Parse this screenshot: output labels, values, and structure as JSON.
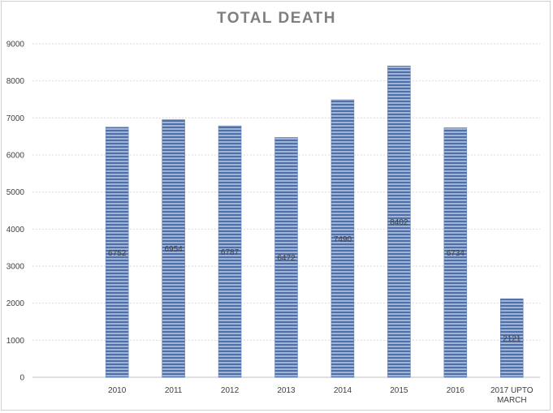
{
  "chart_data": {
    "type": "bar",
    "title": "TOTAL DEATH",
    "xlabel": "",
    "ylabel": "",
    "categories": [
      "",
      "2010",
      "2011",
      "2012",
      "2013",
      "2014",
      "2015",
      "2016",
      "2017 UPTO MARCH"
    ],
    "values": [
      null,
      6752,
      6954,
      6787,
      6472,
      7490,
      8402,
      6734,
      2121
    ],
    "data_labels": [
      "",
      "6752",
      "6954",
      "6787",
      "6472",
      "7490",
      "8402",
      "6734",
      "2121"
    ],
    "ylim": [
      0,
      9000
    ],
    "yticks": [
      "0",
      "1000",
      "2000",
      "3000",
      "4000",
      "5000",
      "6000",
      "7000",
      "8000",
      "9000"
    ],
    "grid": "horizontal",
    "legend": "none",
    "bar_color": "#4f6fa8",
    "bar_stripe_color": "#9fb4d6"
  }
}
